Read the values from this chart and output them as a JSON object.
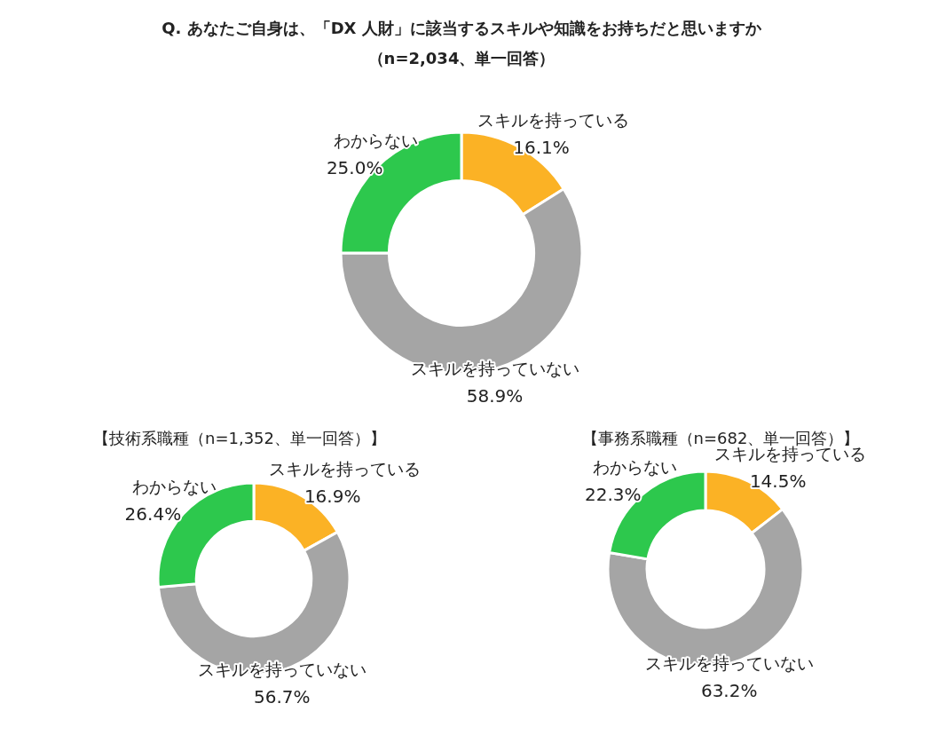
{
  "chart_data": [
    {
      "type": "donut",
      "title": "Q. あなたご自身は、「DX 人財」に該当するスキルや知識をお持ちだと思いますか",
      "subtitle": "（n=2,034、単一回答）",
      "categories": [
        "スキルを持っている",
        "スキルを持っていない",
        "わからない"
      ],
      "values": [
        16.1,
        58.9,
        25.0
      ],
      "value_labels": [
        "16.1%",
        "58.9%",
        "25.0%"
      ],
      "colors": [
        "#fbb225",
        "#a5a5a5",
        "#2dc84d"
      ]
    },
    {
      "type": "donut",
      "title": "【技術系職種（n=1,352、単一回答）】",
      "categories": [
        "スキルを持っている",
        "スキルを持っていない",
        "わからない"
      ],
      "values": [
        16.9,
        56.7,
        26.4
      ],
      "value_labels": [
        "16.9%",
        "56.7%",
        "26.4%"
      ],
      "colors": [
        "#fbb225",
        "#a5a5a5",
        "#2dc84d"
      ]
    },
    {
      "type": "donut",
      "title": "【事務系職種（n=682、単一回答）】",
      "categories": [
        "スキルを持っている",
        "スキルを持っていない",
        "わからない"
      ],
      "values": [
        14.5,
        63.2,
        22.3
      ],
      "value_labels": [
        "14.5%",
        "63.2%",
        "22.3%"
      ],
      "colors": [
        "#fbb225",
        "#a5a5a5",
        "#2dc84d"
      ]
    }
  ]
}
